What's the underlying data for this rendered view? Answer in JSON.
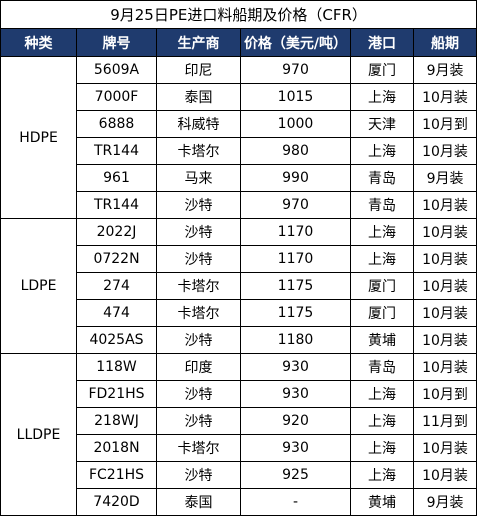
{
  "title": "9月25日PE进口料船期及价格（CFR）",
  "headers": [
    "种类",
    "牌号",
    "生产商",
    "价格（美元/吨）",
    "港口",
    "船期"
  ],
  "colors": {
    "header_bg": "#1f3b6e",
    "header_text": "#ffffff",
    "border": "#000000"
  },
  "groups": [
    {
      "category": "HDPE",
      "rows": [
        [
          "5609A",
          "印尼",
          "970",
          "厦门",
          "9月装"
        ],
        [
          "7000F",
          "泰国",
          "1015",
          "上海",
          "10月装"
        ],
        [
          "6888",
          "科威特",
          "1000",
          "天津",
          "10月到"
        ],
        [
          "TR144",
          "卡塔尔",
          "980",
          "上海",
          "10月装"
        ],
        [
          "961",
          "马来",
          "990",
          "青岛",
          "9月装"
        ],
        [
          "TR144",
          "沙特",
          "970",
          "青岛",
          "10月装"
        ]
      ]
    },
    {
      "category": "LDPE",
      "rows": [
        [
          "2022J",
          "沙特",
          "1170",
          "上海",
          "10月装"
        ],
        [
          "0722N",
          "沙特",
          "1170",
          "上海",
          "10月装"
        ],
        [
          "274",
          "卡塔尔",
          "1175",
          "厦门",
          "10月装"
        ],
        [
          "474",
          "卡塔尔",
          "1175",
          "厦门",
          "10月装"
        ],
        [
          "4025AS",
          "沙特",
          "1180",
          "黄埔",
          "10月装"
        ]
      ]
    },
    {
      "category": "LLDPE",
      "rows": [
        [
          "118W",
          "印度",
          "930",
          "青岛",
          "10月装"
        ],
        [
          "FD21HS",
          "沙特",
          "930",
          "上海",
          "10月到"
        ],
        [
          "218WJ",
          "沙特",
          "920",
          "上海",
          "11月到"
        ],
        [
          "2018N",
          "卡塔尔",
          "930",
          "上海",
          "10月装"
        ],
        [
          "FC21HS",
          "沙特",
          "925",
          "上海",
          "10月装"
        ],
        [
          "7420D",
          "泰国",
          "-",
          "黄埔",
          "9月装"
        ]
      ]
    }
  ]
}
